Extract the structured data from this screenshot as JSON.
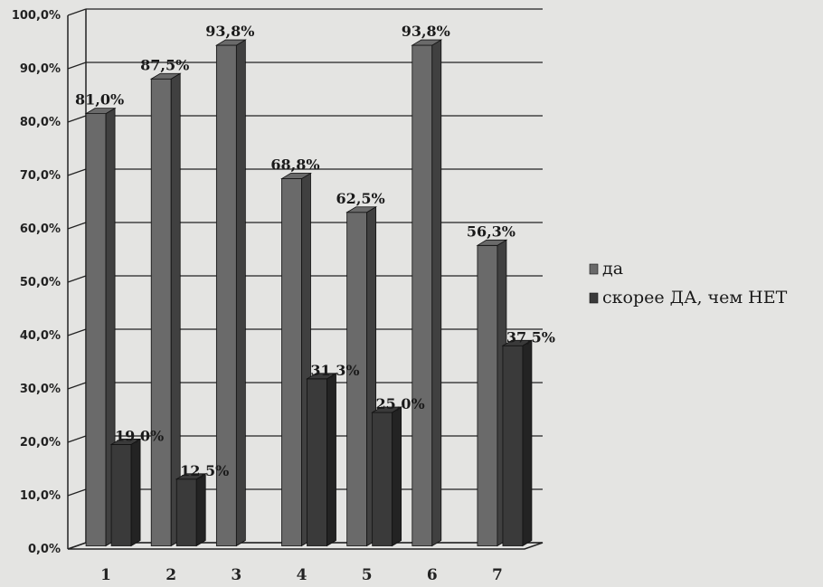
{
  "chart_data": {
    "type": "bar",
    "categories": [
      "1",
      "2",
      "3",
      "4",
      "5",
      "6",
      "7"
    ],
    "series": [
      {
        "name": "да",
        "values": [
          81.0,
          87.5,
          93.8,
          68.8,
          62.5,
          93.8,
          56.3
        ],
        "labels": [
          "81,0%",
          "87,5%",
          "93,8%",
          "68,8%",
          "62,5%",
          "93,8%",
          "56,3%"
        ],
        "color": "#6a6a6a"
      },
      {
        "name": "скорее ДА, чем НЕТ",
        "values": [
          19.0,
          12.5,
          null,
          31.3,
          25.0,
          null,
          37.5
        ],
        "labels": [
          "19,0%",
          "12,5%",
          "",
          "31,3%",
          "25,0%",
          "",
          "37,5%"
        ],
        "color": "#3a3a3a"
      }
    ],
    "yticks": [
      "0,0%",
      "10,0%",
      "20,0%",
      "30,0%",
      "40,0%",
      "50,0%",
      "60,0%",
      "70,0%",
      "80,0%",
      "90,0%",
      "100,0%"
    ],
    "ylim": [
      0,
      100
    ],
    "grid": true,
    "legend": "right"
  }
}
